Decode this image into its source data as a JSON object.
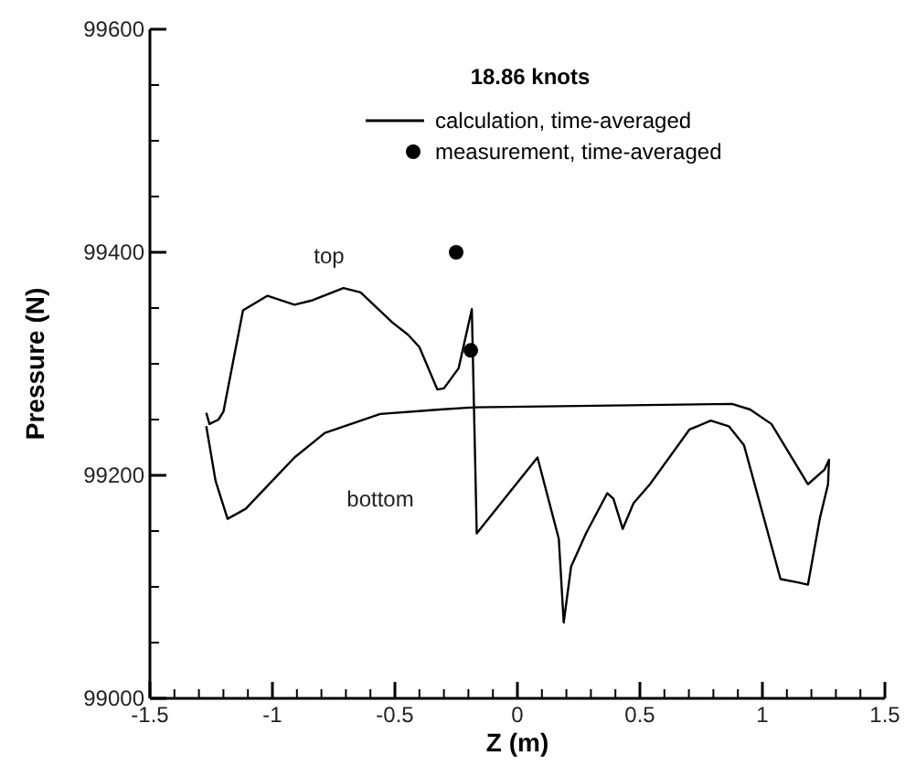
{
  "chart_data": {
    "type": "line",
    "xlabel": "Z (m)",
    "ylabel": "Pressure (N)",
    "legend_title": "18.86 knots",
    "legend": "top",
    "xlim": [
      -1.5,
      1.5
    ],
    "ylim": [
      99000,
      99600
    ],
    "xticks": [
      -1.5,
      {
        "value": -1.4,
        "label": null
      },
      {
        "value": -1.3,
        "label": null
      },
      {
        "value": -1.2,
        "label": null
      },
      {
        "value": -1.1,
        "label": null
      },
      -1,
      {
        "value": -0.9,
        "label": null
      },
      {
        "value": -0.8,
        "label": null
      },
      {
        "value": -0.7,
        "label": null
      },
      {
        "value": -0.6,
        "label": null
      },
      -0.5,
      {
        "value": -0.4,
        "label": null
      },
      {
        "value": -0.3,
        "label": null
      },
      {
        "value": -0.2,
        "label": null
      },
      {
        "value": -0.1,
        "label": null
      },
      0,
      {
        "value": 0.1,
        "label": null
      },
      {
        "value": 0.2,
        "label": null
      },
      {
        "value": 0.3,
        "label": null
      },
      {
        "value": 0.4,
        "label": null
      },
      0.5,
      {
        "value": 0.6,
        "label": null
      },
      {
        "value": 0.7,
        "label": null
      },
      {
        "value": 0.8,
        "label": null
      },
      {
        "value": 0.9,
        "label": null
      },
      1,
      {
        "value": 1.1,
        "label": null
      },
      {
        "value": 1.2,
        "label": null
      },
      {
        "value": 1.3,
        "label": null
      },
      {
        "value": 1.4,
        "label": null
      },
      1.5
    ],
    "yticks": [
      99000,
      {
        "value": 99050,
        "label": null
      },
      {
        "value": 99100,
        "label": null
      },
      {
        "value": 99150,
        "label": null
      },
      99200,
      {
        "value": 99250,
        "label": null
      },
      {
        "value": 99300,
        "label": null
      },
      {
        "value": 99350,
        "label": null
      },
      99400,
      {
        "value": 99450,
        "label": null
      },
      {
        "value": 99500,
        "label": null
      },
      {
        "value": 99550,
        "label": null
      },
      99600
    ],
    "grid": false,
    "annotations": [
      "top",
      "bottom"
    ],
    "series": [
      {
        "name": "calculation, time-averaged",
        "color": "#000000",
        "marker": "none",
        "line_style": "solid",
        "x": [
          -1.27,
          -1.257,
          -1.22,
          -1.2,
          -1.12,
          -1.02,
          -0.91,
          -0.836,
          -0.71,
          -0.64,
          -0.51,
          -0.446,
          -0.4,
          -0.327,
          -0.3,
          -0.24,
          -0.186,
          -0.166,
          0.082,
          0.169,
          0.189,
          0.219,
          0.28,
          0.367,
          0.392,
          0.43,
          0.474,
          0.541,
          0.702,
          0.789,
          0.863,
          0.925,
          1.074,
          1.144,
          1.186,
          1.235,
          1.268,
          1.272,
          1.253,
          1.186,
          1.037,
          0.95,
          0.876,
          -0.179,
          -0.315,
          -0.56,
          -0.786,
          -0.91,
          -1.109,
          -1.183,
          -1.232,
          -1.27
        ],
        "values": [
          99256,
          99246,
          99250,
          99257,
          99348,
          99361,
          99353,
          99357,
          99368,
          99364,
          99337,
          99326,
          99315,
          99277,
          99278,
          99296,
          99349,
          99148,
          99216,
          99143,
          99068,
          99118,
          99148,
          99184,
          99179,
          99152,
          99175,
          99192,
          99241,
          99249,
          99244,
          99227,
          99107,
          99104,
          99102,
          99162,
          99192,
          99214,
          99205,
          99192,
          99246,
          99259,
          99264,
          99261,
          99259,
          99255,
          99238,
          99216,
          99170,
          99161,
          99195,
          99244
        ]
      },
      {
        "name": "measurement, time-averaged",
        "type": "scatter",
        "color": "#000000",
        "marker": "circle",
        "x": [
          -0.25,
          -0.19
        ],
        "values": [
          99400,
          99312
        ]
      }
    ]
  }
}
